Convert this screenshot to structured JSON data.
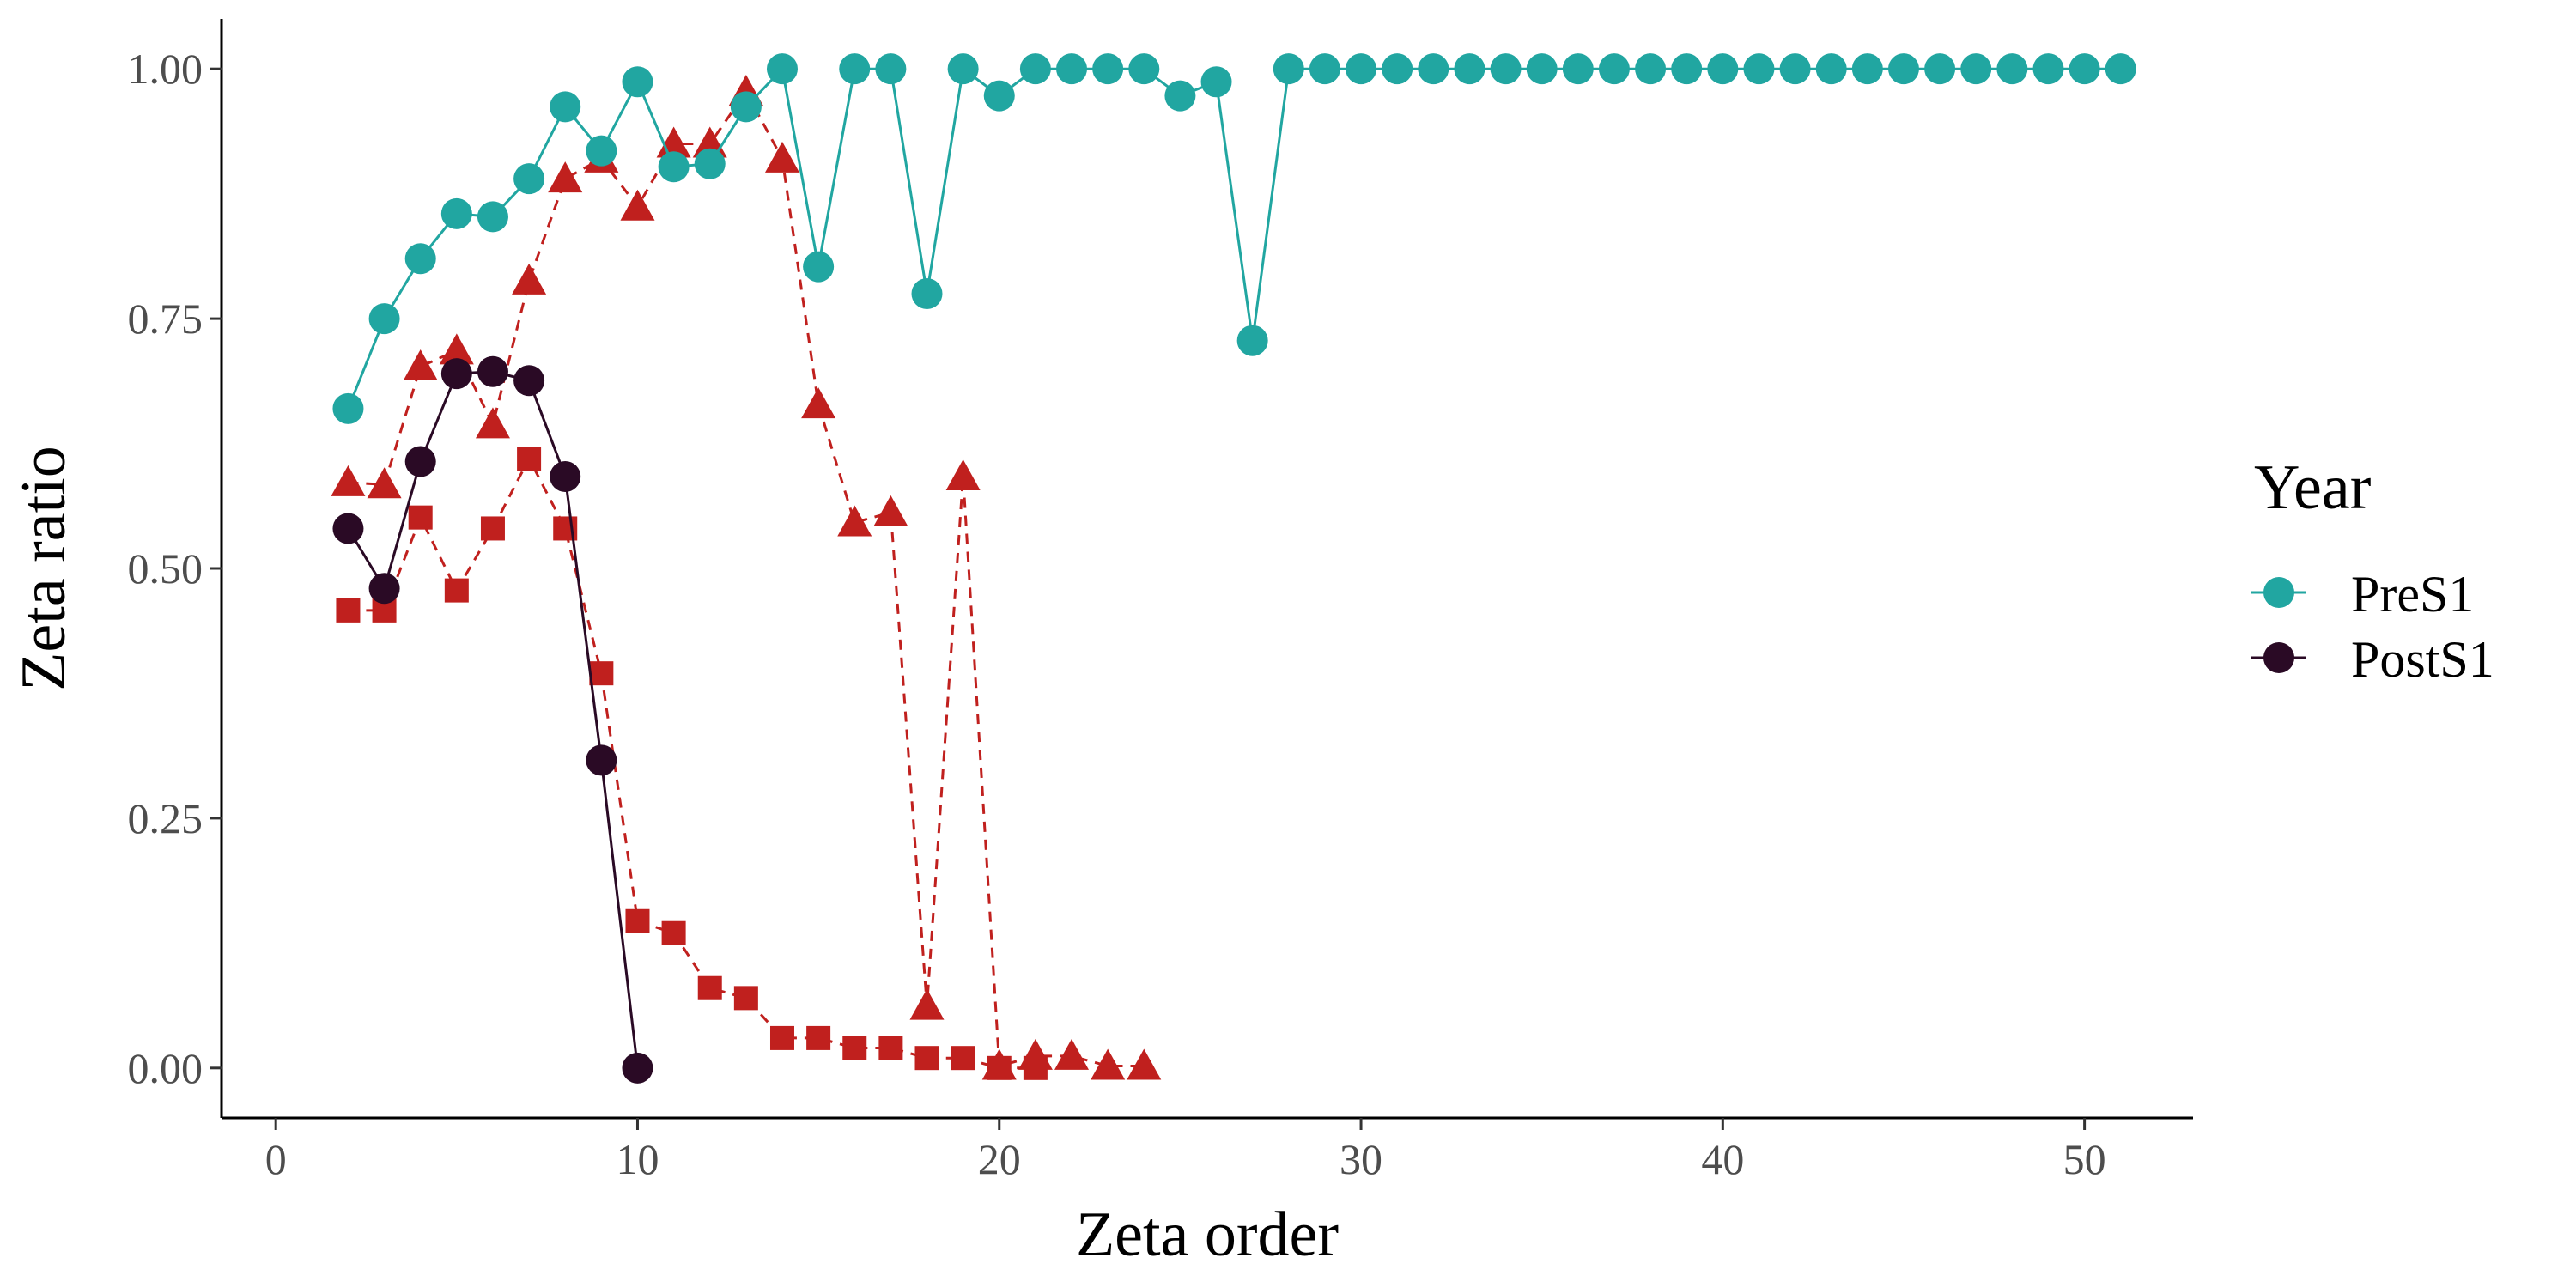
{
  "chart_data": {
    "type": "line",
    "xlabel": "Zeta order",
    "ylabel": "Zeta ratio",
    "xlim": [
      -1.5,
      53
    ],
    "ylim": [
      -0.05,
      1.05
    ],
    "xticks": [
      0,
      10,
      20,
      30,
      40,
      50
    ],
    "yticks": [
      0.0,
      0.25,
      0.5,
      0.75,
      1.0
    ],
    "ytick_labels": [
      "0.00",
      "0.25",
      "0.50",
      "0.75",
      "1.00"
    ],
    "grid": false,
    "legend": {
      "title": "Year",
      "position": "right",
      "entries": [
        "PreS1",
        "PostS1"
      ]
    },
    "series": [
      {
        "name": "PreS1",
        "color": "#21a6a1",
        "marker": "circle",
        "line": "solid",
        "in_legend": true,
        "x": [
          2,
          3,
          4,
          5,
          6,
          7,
          8,
          9,
          10,
          11,
          12,
          13,
          14,
          15,
          16,
          17,
          18,
          19,
          20,
          21,
          22,
          23,
          24,
          25,
          26,
          27,
          28,
          29,
          30,
          31,
          32,
          33,
          34,
          35,
          36,
          37,
          38,
          39,
          40,
          41,
          42,
          43,
          44,
          45,
          46,
          47,
          48,
          49,
          50,
          51
        ],
        "y": [
          0.66,
          0.75,
          0.81,
          0.855,
          0.852,
          0.89,
          0.962,
          0.918,
          0.987,
          0.902,
          0.905,
          0.962,
          1.0,
          0.802,
          1.0,
          1.0,
          0.775,
          1.0,
          0.973,
          1.0,
          1.0,
          1.0,
          1.0,
          0.973,
          0.987,
          0.728,
          1.0,
          1.0,
          1.0,
          1.0,
          1.0,
          1.0,
          1.0,
          1.0,
          1.0,
          1.0,
          1.0,
          1.0,
          1.0,
          1.0,
          1.0,
          1.0,
          1.0,
          1.0,
          1.0,
          1.0,
          1.0,
          1.0,
          1.0,
          1.0
        ]
      },
      {
        "name": "PostS1",
        "color": "#2a0a25",
        "marker": "circle",
        "line": "solid",
        "in_legend": true,
        "x": [
          2,
          3,
          4,
          5,
          6,
          7,
          8,
          9,
          10
        ],
        "y": [
          0.54,
          0.48,
          0.607,
          0.695,
          0.697,
          0.688,
          0.592,
          0.308,
          0.0
        ]
      },
      {
        "color": "#c0201e",
        "marker": "triangle",
        "line": "dashed",
        "in_legend": false,
        "x": [
          2,
          3,
          4,
          5,
          6,
          7,
          8,
          9,
          10,
          11,
          12,
          13,
          14,
          15,
          16,
          17,
          18,
          19,
          20,
          21,
          22,
          23,
          24
        ],
        "y": [
          0.586,
          0.584,
          0.702,
          0.718,
          0.644,
          0.788,
          0.89,
          0.91,
          0.862,
          0.925,
          0.925,
          0.977,
          0.91,
          0.664,
          0.546,
          0.556,
          0.062,
          0.592,
          0.002,
          0.012,
          0.012,
          0.002,
          0.002
        ]
      },
      {
        "color": "#c0201e",
        "marker": "square",
        "line": "dashed",
        "in_legend": false,
        "x": [
          2,
          3,
          4,
          5,
          6,
          7,
          8,
          9,
          10,
          11,
          12,
          13,
          14,
          15,
          16,
          17,
          18,
          19,
          20,
          21
        ],
        "y": [
          0.458,
          0.458,
          0.551,
          0.478,
          0.54,
          0.61,
          0.54,
          0.395,
          0.147,
          0.135,
          0.08,
          0.07,
          0.03,
          0.03,
          0.02,
          0.02,
          0.01,
          0.01,
          0.0,
          0.0
        ]
      }
    ]
  }
}
